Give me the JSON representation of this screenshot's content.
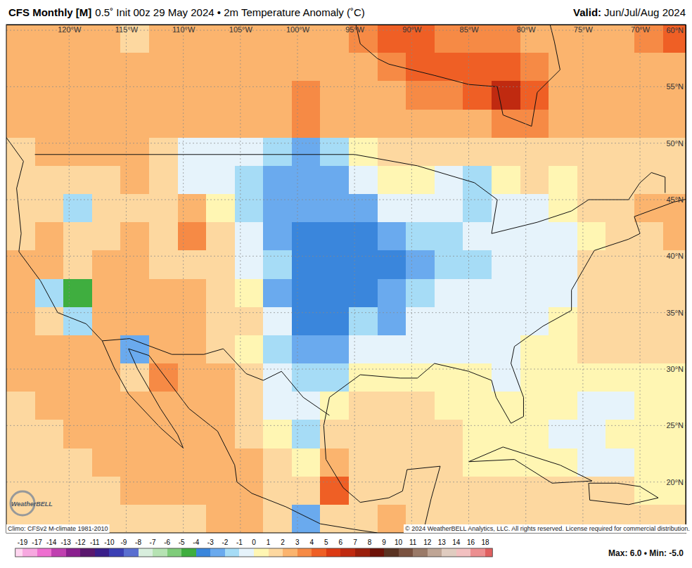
{
  "chart_data": {
    "type": "heatmap",
    "title": "CFS Monthly [M]",
    "subtitle": "0.5˚ Init 00z 29 May 2024 • 2m Temperature Anomaly (˚C)",
    "valid_label": "Valid:",
    "valid": "Jun/Jul/Aug 2024",
    "climo": "Climo: CFSv2 M-climate 1981-2010",
    "copyright": "© 2024 WeatherBELL Analytics, LLC. All rights reserved. License required for commercial distribution.",
    "stats": "Max: 6.0 • Min: -5.0",
    "logo": "WeatherBELL",
    "grid": true,
    "xlim": [
      -125.5,
      -66
    ],
    "ylim": [
      15.5,
      60.5
    ],
    "xticks": [
      {
        "value": -120,
        "label": "120°W"
      },
      {
        "value": -115,
        "label": "115°W"
      },
      {
        "value": -110,
        "label": "110°W"
      },
      {
        "value": -105,
        "label": "105°W"
      },
      {
        "value": -100,
        "label": "100°W"
      },
      {
        "value": -95,
        "label": "95°W"
      },
      {
        "value": -90,
        "label": "90°W"
      },
      {
        "value": -85,
        "label": "85°W"
      },
      {
        "value": -80,
        "label": "80°W"
      },
      {
        "value": -75,
        "label": "75°W"
      },
      {
        "value": -70,
        "label": "70°W"
      }
    ],
    "yticks": [
      {
        "value": 60,
        "label": "60°N"
      },
      {
        "value": 55,
        "label": "55°N"
      },
      {
        "value": 50,
        "label": "50°N"
      },
      {
        "value": 45,
        "label": "45°N"
      },
      {
        "value": 40,
        "label": "40°N"
      },
      {
        "value": 35,
        "label": "35°N"
      },
      {
        "value": 30,
        "label": "30°N"
      },
      {
        "value": 25,
        "label": "25°N"
      },
      {
        "value": 20,
        "label": "20°N"
      }
    ],
    "x_bins": [
      -125.5,
      -123,
      -120.5,
      -118,
      -115.5,
      -113,
      -110.5,
      -108,
      -105.5,
      -103,
      -100.5,
      -98,
      -95.5,
      -93,
      -90.5,
      -88,
      -85.5,
      -83,
      -80.5,
      -78,
      -75.5,
      -73,
      -70.5,
      -68,
      -65.5
    ],
    "y_bins": [
      60.5,
      58,
      55.5,
      53,
      50.5,
      48,
      45.5,
      43,
      40.5,
      38,
      35.5,
      33,
      30.5,
      28,
      25.5,
      23,
      20.5,
      18,
      15.5
    ],
    "cells": [
      [
        2.5,
        2.5,
        2,
        2,
        1,
        2,
        2,
        2,
        2,
        2,
        2,
        2,
        3,
        4,
        4,
        3,
        3,
        3,
        2.5,
        2,
        2,
        2,
        3,
        4
      ],
      [
        2,
        2.5,
        2,
        2,
        2,
        2.5,
        2,
        2,
        2,
        2.5,
        2,
        2,
        2,
        3,
        4.5,
        4.5,
        4.5,
        4.5,
        3,
        2.5,
        2,
        2,
        2,
        2.5
      ],
      [
        2,
        2,
        2,
        2.5,
        2,
        2,
        2,
        2,
        2,
        2,
        3,
        2,
        2,
        2.5,
        3,
        3.5,
        4.5,
        6,
        4,
        2.5,
        2,
        2,
        2,
        2
      ],
      [
        2,
        2.5,
        2,
        2,
        2,
        2,
        2,
        2,
        2,
        2,
        3,
        2,
        2,
        2,
        2,
        2,
        2.5,
        3.5,
        3,
        2,
        2,
        2,
        2,
        2
      ],
      [
        1.5,
        2,
        2,
        2,
        2,
        1.5,
        -0.5,
        -0.5,
        -1,
        -2,
        -2.5,
        -2,
        0.5,
        1,
        1.5,
        1.5,
        1.5,
        1.5,
        1.5,
        1.5,
        1.5,
        1.5,
        1,
        1.5
      ],
      [
        1.5,
        1,
        1,
        1,
        2,
        1,
        -0.5,
        -0.5,
        -1.5,
        -3,
        -3,
        -2.5,
        -0.5,
        0.5,
        0.5,
        -1,
        -1.5,
        0.5,
        1,
        0.5,
        1,
        1,
        1.5,
        1.5
      ],
      [
        1,
        1.5,
        -1.5,
        1,
        1.5,
        1,
        2,
        0.5,
        -1.5,
        -3,
        -3,
        -3,
        -2.5,
        -1,
        -1,
        -0.5,
        -1.5,
        -0.5,
        -0.5,
        0.5,
        1,
        1.5,
        2,
        2.5
      ],
      [
        1.5,
        2,
        1.5,
        1.5,
        2,
        1,
        3.5,
        1,
        -0.5,
        -3,
        -3.5,
        -3.5,
        -3.5,
        -3,
        -2,
        -1.5,
        -1,
        -0.5,
        -0.5,
        -0.5,
        0.5,
        1,
        1.5,
        2
      ],
      [
        2,
        2,
        1.5,
        2,
        2,
        1.5,
        1.5,
        1,
        -0.5,
        -2,
        -4,
        -4,
        -3.5,
        -3.5,
        -2.5,
        -2,
        -1.5,
        -0.5,
        -0.5,
        -0.5,
        1,
        1,
        1,
        1
      ],
      [
        2,
        -1.5,
        -5,
        2,
        2,
        2,
        2,
        1.5,
        0.5,
        -2.5,
        -4,
        -4,
        -3.5,
        -3,
        -2,
        -0.5,
        -0.5,
        -0.5,
        -0.5,
        -1,
        1,
        1,
        1,
        1
      ],
      [
        2,
        1.5,
        -2,
        2,
        2,
        2,
        2,
        1.5,
        1,
        -1,
        -4,
        -3.5,
        -1.5,
        -2.5,
        -0.5,
        -0.5,
        -1,
        -1,
        -0.5,
        0.5,
        1,
        1,
        1,
        1
      ],
      [
        2,
        2,
        2,
        2.5,
        -3,
        2,
        2,
        1.5,
        0.5,
        -1.5,
        -3,
        -2.5,
        -0.5,
        -0.5,
        -0.5,
        -0.5,
        -0.5,
        -1,
        0.5,
        0.5,
        1,
        1,
        1,
        1
      ],
      [
        2,
        2,
        2,
        2,
        1.5,
        3,
        2,
        2,
        1,
        -0.5,
        -2,
        -1.5,
        0.5,
        0.5,
        0.5,
        0.5,
        0.5,
        -0.5,
        0.5,
        0.5,
        0.5,
        0.5,
        0.5,
        0.5
      ],
      [
        1.5,
        2,
        2,
        2,
        2,
        2.5,
        2,
        2,
        1.5,
        -0.5,
        -0.5,
        0.5,
        1,
        1,
        1,
        0.5,
        0.5,
        0.5,
        0.5,
        0.5,
        -0.5,
        -0.5,
        0.5,
        0.5
      ],
      [
        1.5,
        1.5,
        2,
        2,
        2,
        2,
        2.5,
        2,
        1.5,
        0.5,
        -1.5,
        1,
        1,
        1,
        1,
        1,
        0.5,
        0.5,
        0.5,
        -0.5,
        -0.5,
        0.5,
        0.5,
        0.5
      ],
      [
        1.5,
        1.5,
        1.5,
        2,
        2,
        2,
        2,
        2,
        2,
        1.5,
        0.5,
        2.5,
        1,
        1,
        1.5,
        1,
        0.5,
        0.5,
        0.5,
        0.5,
        -0.5,
        -0.5,
        0.5,
        0.5
      ],
      [
        1.5,
        1.5,
        1.5,
        1.5,
        2,
        2,
        2,
        2,
        2,
        1,
        1.5,
        4,
        1,
        1,
        1.5,
        1,
        1,
        1,
        1,
        1,
        1,
        1,
        0.5,
        0.5
      ],
      [
        1.5,
        1.5,
        1.5,
        1.5,
        1.5,
        1.5,
        1.5,
        2,
        2,
        1.5,
        -3,
        1,
        1.5,
        2,
        1,
        1,
        1,
        1,
        1,
        1,
        1,
        1,
        1,
        1
      ]
    ],
    "colorbar": {
      "ticks": [
        -19,
        -17,
        -14,
        -13,
        -12,
        -11,
        -10,
        -9,
        -8,
        -7,
        -6,
        -5,
        -4,
        -3,
        -2,
        -1,
        0,
        1,
        2,
        3,
        4,
        5,
        6,
        7,
        8,
        9,
        10,
        11,
        12,
        13,
        14,
        16,
        18
      ]
    }
  }
}
